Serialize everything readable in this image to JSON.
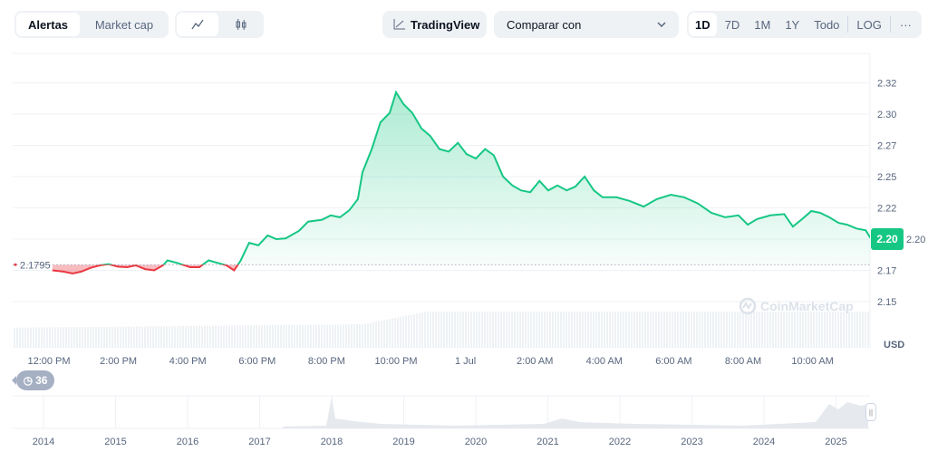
{
  "toolbar": {
    "view_tabs": [
      {
        "label": "Alertas",
        "active": true
      },
      {
        "label": "Market cap",
        "active": false
      }
    ],
    "chart_types": [
      {
        "icon": "line-chart-icon",
        "active": true
      },
      {
        "icon": "candlestick-icon",
        "active": false
      }
    ],
    "tradingview_label": "TradingView",
    "compare_label": "Comparar con",
    "ranges": [
      {
        "label": "1D",
        "active": true
      },
      {
        "label": "7D"
      },
      {
        "label": "1M"
      },
      {
        "label": "1Y"
      },
      {
        "label": "Todo"
      }
    ],
    "log_label": "LOG",
    "more_label": "···"
  },
  "history_badge": {
    "icon": "history-icon",
    "count": "36"
  },
  "watermark": "CoinMarketCap",
  "colors": {
    "up": "#16c784",
    "down": "#ea3943",
    "grid": "#eff2f5"
  },
  "chart_data": {
    "type": "line",
    "title": "",
    "currency_label": "USD",
    "current_price_label": "2.20",
    "reference_price_label": "2.1795",
    "reference_price": 2.1795,
    "y_ticks": [
      "2.32",
      "2.30",
      "2.27",
      "2.25",
      "2.22",
      "2.20",
      "2.17",
      "2.15"
    ],
    "y_tick_values": [
      2.325,
      2.3,
      2.275,
      2.25,
      2.225,
      2.2,
      2.175,
      2.15
    ],
    "x_ticks": [
      "12:00 PM",
      "2:00 PM",
      "4:00 PM",
      "6:00 PM",
      "8:00 PM",
      "10:00 PM",
      "1 Jul",
      "2:00 AM",
      "4:00 AM",
      "6:00 AM",
      "8:00 AM",
      "10:00 AM"
    ],
    "grid": true,
    "points": [
      [
        "12:06",
        2.175
      ],
      [
        "12:25",
        2.174
      ],
      [
        "12:41",
        2.1725
      ],
      [
        "12:56",
        2.174
      ],
      [
        "13:12",
        2.177
      ],
      [
        "13:28",
        2.179
      ],
      [
        "13:43",
        2.18
      ],
      [
        "13:59",
        2.178
      ],
      [
        "14:15",
        2.1775
      ],
      [
        "14:30",
        2.179
      ],
      [
        "14:46",
        2.176
      ],
      [
        "15:02",
        2.175
      ],
      [
        "15:17",
        2.179
      ],
      [
        "15:25",
        2.183
      ],
      [
        "15:41",
        2.181
      ],
      [
        "16:04",
        2.1775
      ],
      [
        "16:20",
        2.1775
      ],
      [
        "16:36",
        2.183
      ],
      [
        "16:51",
        2.181
      ],
      [
        "17:07",
        2.179
      ],
      [
        "17:20",
        2.175
      ],
      [
        "17:31",
        2.1825
      ],
      [
        "17:46",
        2.197
      ],
      [
        "18:02",
        2.195
      ],
      [
        "18:18",
        2.203
      ],
      [
        "18:33",
        2.2
      ],
      [
        "18:49",
        2.2005
      ],
      [
        "19:12",
        2.2065
      ],
      [
        "19:28",
        2.214
      ],
      [
        "19:52",
        2.2155
      ],
      [
        "20:07",
        2.219
      ],
      [
        "20:23",
        2.2175
      ],
      [
        "20:39",
        2.223
      ],
      [
        "20:54",
        2.232
      ],
      [
        "21:02",
        2.2535
      ],
      [
        "21:18",
        2.272
      ],
      [
        "21:33",
        2.2935
      ],
      [
        "21:49",
        2.301
      ],
      [
        "22:00",
        2.3175
      ],
      [
        "22:13",
        2.308
      ],
      [
        "22:28",
        2.301
      ],
      [
        "22:44",
        2.2885
      ],
      [
        "22:59",
        2.2825
      ],
      [
        "23:15",
        2.272
      ],
      [
        "23:31",
        2.27
      ],
      [
        "23:47",
        2.277
      ],
      [
        "00:02",
        2.268
      ],
      [
        "00:18",
        2.2645
      ],
      [
        "00:34",
        2.272
      ],
      [
        "00:49",
        2.267
      ],
      [
        "01:05",
        2.25
      ],
      [
        "01:21",
        2.243
      ],
      [
        "01:36",
        2.239
      ],
      [
        "01:52",
        2.2375
      ],
      [
        "02:08",
        2.2465
      ],
      [
        "02:23",
        2.239
      ],
      [
        "02:39",
        2.243
      ],
      [
        "02:55",
        2.239
      ],
      [
        "03:10",
        2.242
      ],
      [
        "03:26",
        2.25
      ],
      [
        "03:42",
        2.239
      ],
      [
        "03:57",
        2.2335
      ],
      [
        "04:21",
        2.2335
      ],
      [
        "04:44",
        2.2305
      ],
      [
        "05:08",
        2.226
      ],
      [
        "05:31",
        2.232
      ],
      [
        "05:55",
        2.2355
      ],
      [
        "06:18",
        2.2335
      ],
      [
        "06:42",
        2.2285
      ],
      [
        "07:05",
        2.221
      ],
      [
        "07:29",
        2.2175
      ],
      [
        "07:52",
        2.219
      ],
      [
        "08:08",
        2.2115
      ],
      [
        "08:24",
        2.216
      ],
      [
        "08:47",
        2.219
      ],
      [
        "09:11",
        2.22
      ],
      [
        "09:26",
        2.21
      ],
      [
        "09:42",
        2.216
      ],
      [
        "09:58",
        2.2225
      ],
      [
        "10:13",
        2.221
      ],
      [
        "10:29",
        2.2175
      ],
      [
        "10:45",
        2.213
      ],
      [
        "11:00",
        2.2115
      ],
      [
        "11:16",
        2.2085
      ],
      [
        "11:32",
        2.207
      ],
      [
        "11:40",
        2.201
      ]
    ],
    "navigator": {
      "x_ticks": [
        "2014",
        "2015",
        "2016",
        "2017",
        "2018",
        "2019",
        "2020",
        "2021",
        "2022",
        "2023",
        "2024",
        "2025"
      ]
    }
  }
}
